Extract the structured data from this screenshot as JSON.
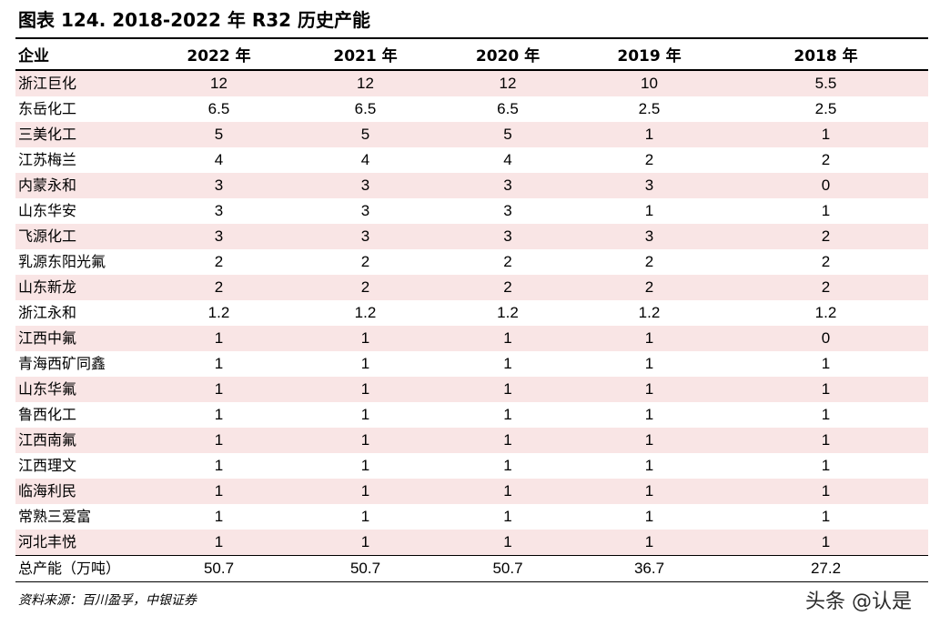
{
  "title": "图表 124. 2018-2022 年 R32 历史产能",
  "table": {
    "headers": [
      "企业",
      "2022 年",
      "2021 年",
      "2020 年",
      "2019 年",
      "2018 年"
    ],
    "rows": [
      [
        "浙江巨化",
        "12",
        "12",
        "12",
        "10",
        "5.5"
      ],
      [
        "东岳化工",
        "6.5",
        "6.5",
        "6.5",
        "2.5",
        "2.5"
      ],
      [
        "三美化工",
        "5",
        "5",
        "5",
        "1",
        "1"
      ],
      [
        "江苏梅兰",
        "4",
        "4",
        "4",
        "2",
        "2"
      ],
      [
        "内蒙永和",
        "3",
        "3",
        "3",
        "3",
        "0"
      ],
      [
        "山东华安",
        "3",
        "3",
        "3",
        "1",
        "1"
      ],
      [
        "飞源化工",
        "3",
        "3",
        "3",
        "3",
        "2"
      ],
      [
        "乳源东阳光氟",
        "2",
        "2",
        "2",
        "2",
        "2"
      ],
      [
        "山东新龙",
        "2",
        "2",
        "2",
        "2",
        "2"
      ],
      [
        "浙江永和",
        "1.2",
        "1.2",
        "1.2",
        "1.2",
        "1.2"
      ],
      [
        "江西中氟",
        "1",
        "1",
        "1",
        "1",
        "0"
      ],
      [
        "青海西矿同鑫",
        "1",
        "1",
        "1",
        "1",
        "1"
      ],
      [
        "山东华氟",
        "1",
        "1",
        "1",
        "1",
        "1"
      ],
      [
        "鲁西化工",
        "1",
        "1",
        "1",
        "1",
        "1"
      ],
      [
        "江西南氟",
        "1",
        "1",
        "1",
        "1",
        "1"
      ],
      [
        "江西理文",
        "1",
        "1",
        "1",
        "1",
        "1"
      ],
      [
        "临海利民",
        "1",
        "1",
        "1",
        "1",
        "1"
      ],
      [
        "常熟三爱富",
        "1",
        "1",
        "1",
        "1",
        "1"
      ],
      [
        "河北丰悦",
        "1",
        "1",
        "1",
        "1",
        "1"
      ]
    ],
    "total": [
      "总产能（万吨）",
      "50.7",
      "50.7",
      "50.7",
      "36.7",
      "27.2"
    ]
  },
  "source": "资料来源：百川盈孚，中银证券",
  "watermark": "头条 @认是"
}
